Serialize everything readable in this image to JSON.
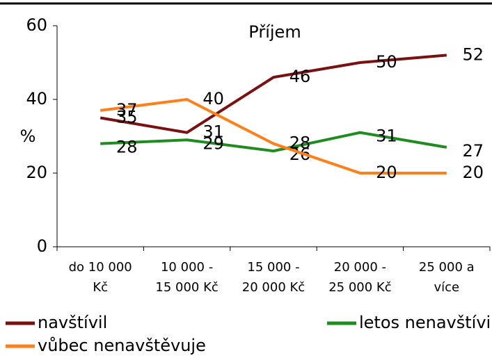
{
  "chart_data": {
    "type": "line",
    "title": "Příjem",
    "y_label": "%",
    "categories": [
      [
        "do 10 000",
        "Kč"
      ],
      [
        "10 000 -",
        "15 000 Kč"
      ],
      [
        "15 000 -",
        "20 000 Kč"
      ],
      [
        "20 000 -",
        "25 000 Kč"
      ],
      [
        "25 000 a",
        "více"
      ]
    ],
    "series": [
      {
        "name": "navštívil",
        "color": "#7b1010",
        "values": [
          35,
          31,
          46,
          50,
          52
        ]
      },
      {
        "name": "letos nenavštívil",
        "color": "#1e8c1e",
        "values": [
          28,
          29,
          26,
          31,
          27
        ]
      },
      {
        "name": "vůbec nenavštěvuje",
        "color": "#ff8019",
        "values": [
          37,
          40,
          28,
          20,
          20
        ]
      }
    ],
    "ylim": [
      0,
      60
    ],
    "yticks": [
      0,
      20,
      40,
      60
    ]
  }
}
